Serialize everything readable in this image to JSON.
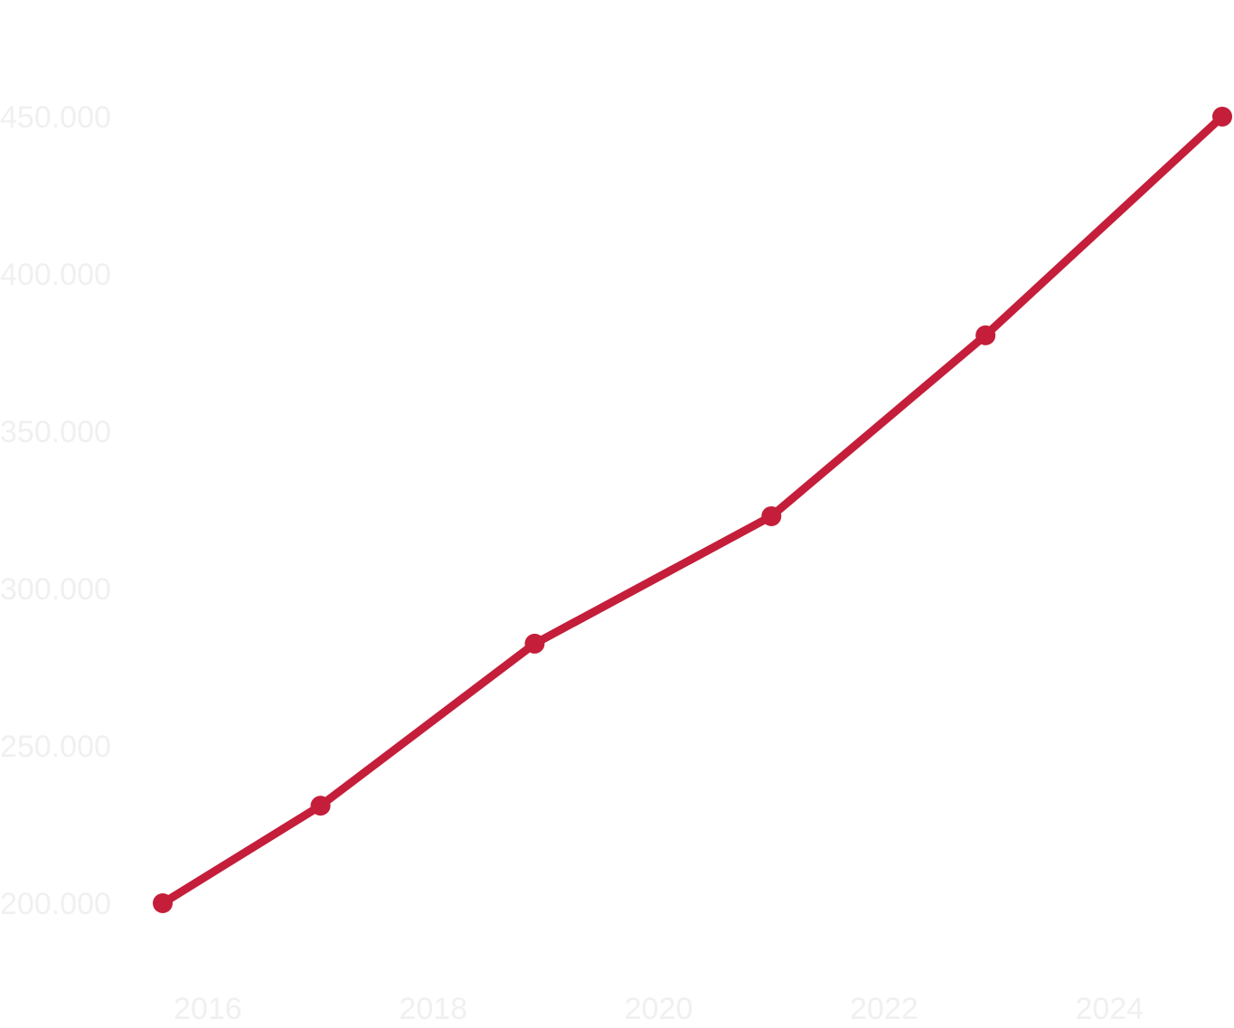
{
  "chart_data": {
    "type": "line",
    "title": "",
    "xlabel": "",
    "ylabel": "",
    "x": [
      2015.6,
      2017.0,
      2018.9,
      2021.0,
      2022.9,
      2025.0
    ],
    "series": [
      {
        "values": [
          200000,
          231000,
          282500,
          323000,
          380500,
          450000
        ]
      }
    ],
    "xlim": [
      2015.6,
      2025.0
    ],
    "ylim": [
      200000,
      450000
    ],
    "x_ticks": [
      2016,
      2018,
      2020,
      2022,
      2024
    ],
    "x_tick_labels": [
      "2016",
      "2018",
      "2020",
      "2022",
      "2024"
    ],
    "y_ticks": [
      200000,
      250000,
      300000,
      350000,
      400000,
      450000
    ],
    "y_tick_labels": [
      "200.000",
      "250.000",
      "300.000",
      "350.000",
      "400.000",
      "450.000"
    ],
    "grid": false,
    "legend": "none",
    "colors": {
      "line": "#c41e3a",
      "tick_text": "#f0f0f0",
      "background": "#ffffff"
    }
  }
}
